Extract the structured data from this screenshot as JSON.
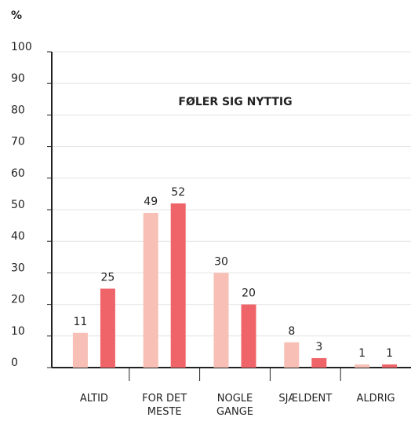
{
  "chart_data": {
    "type": "bar",
    "title": "FØLER SIG NYTTIG",
    "y_label": "%",
    "categories": [
      "ALTID",
      "FOR DET MESTE",
      "NOGLE GANGE",
      "SJÆLDENT",
      "ALDRIG"
    ],
    "series": [
      {
        "color": "#f7bfb5",
        "values": [
          11,
          49,
          30,
          8,
          1
        ]
      },
      {
        "color": "#ef6468",
        "values": [
          25,
          52,
          20,
          3,
          1
        ]
      }
    ],
    "ylim": [
      0,
      100
    ],
    "yticks": [
      0,
      10,
      20,
      30,
      40,
      50,
      60,
      70,
      80,
      90,
      100
    ],
    "grid": true
  }
}
